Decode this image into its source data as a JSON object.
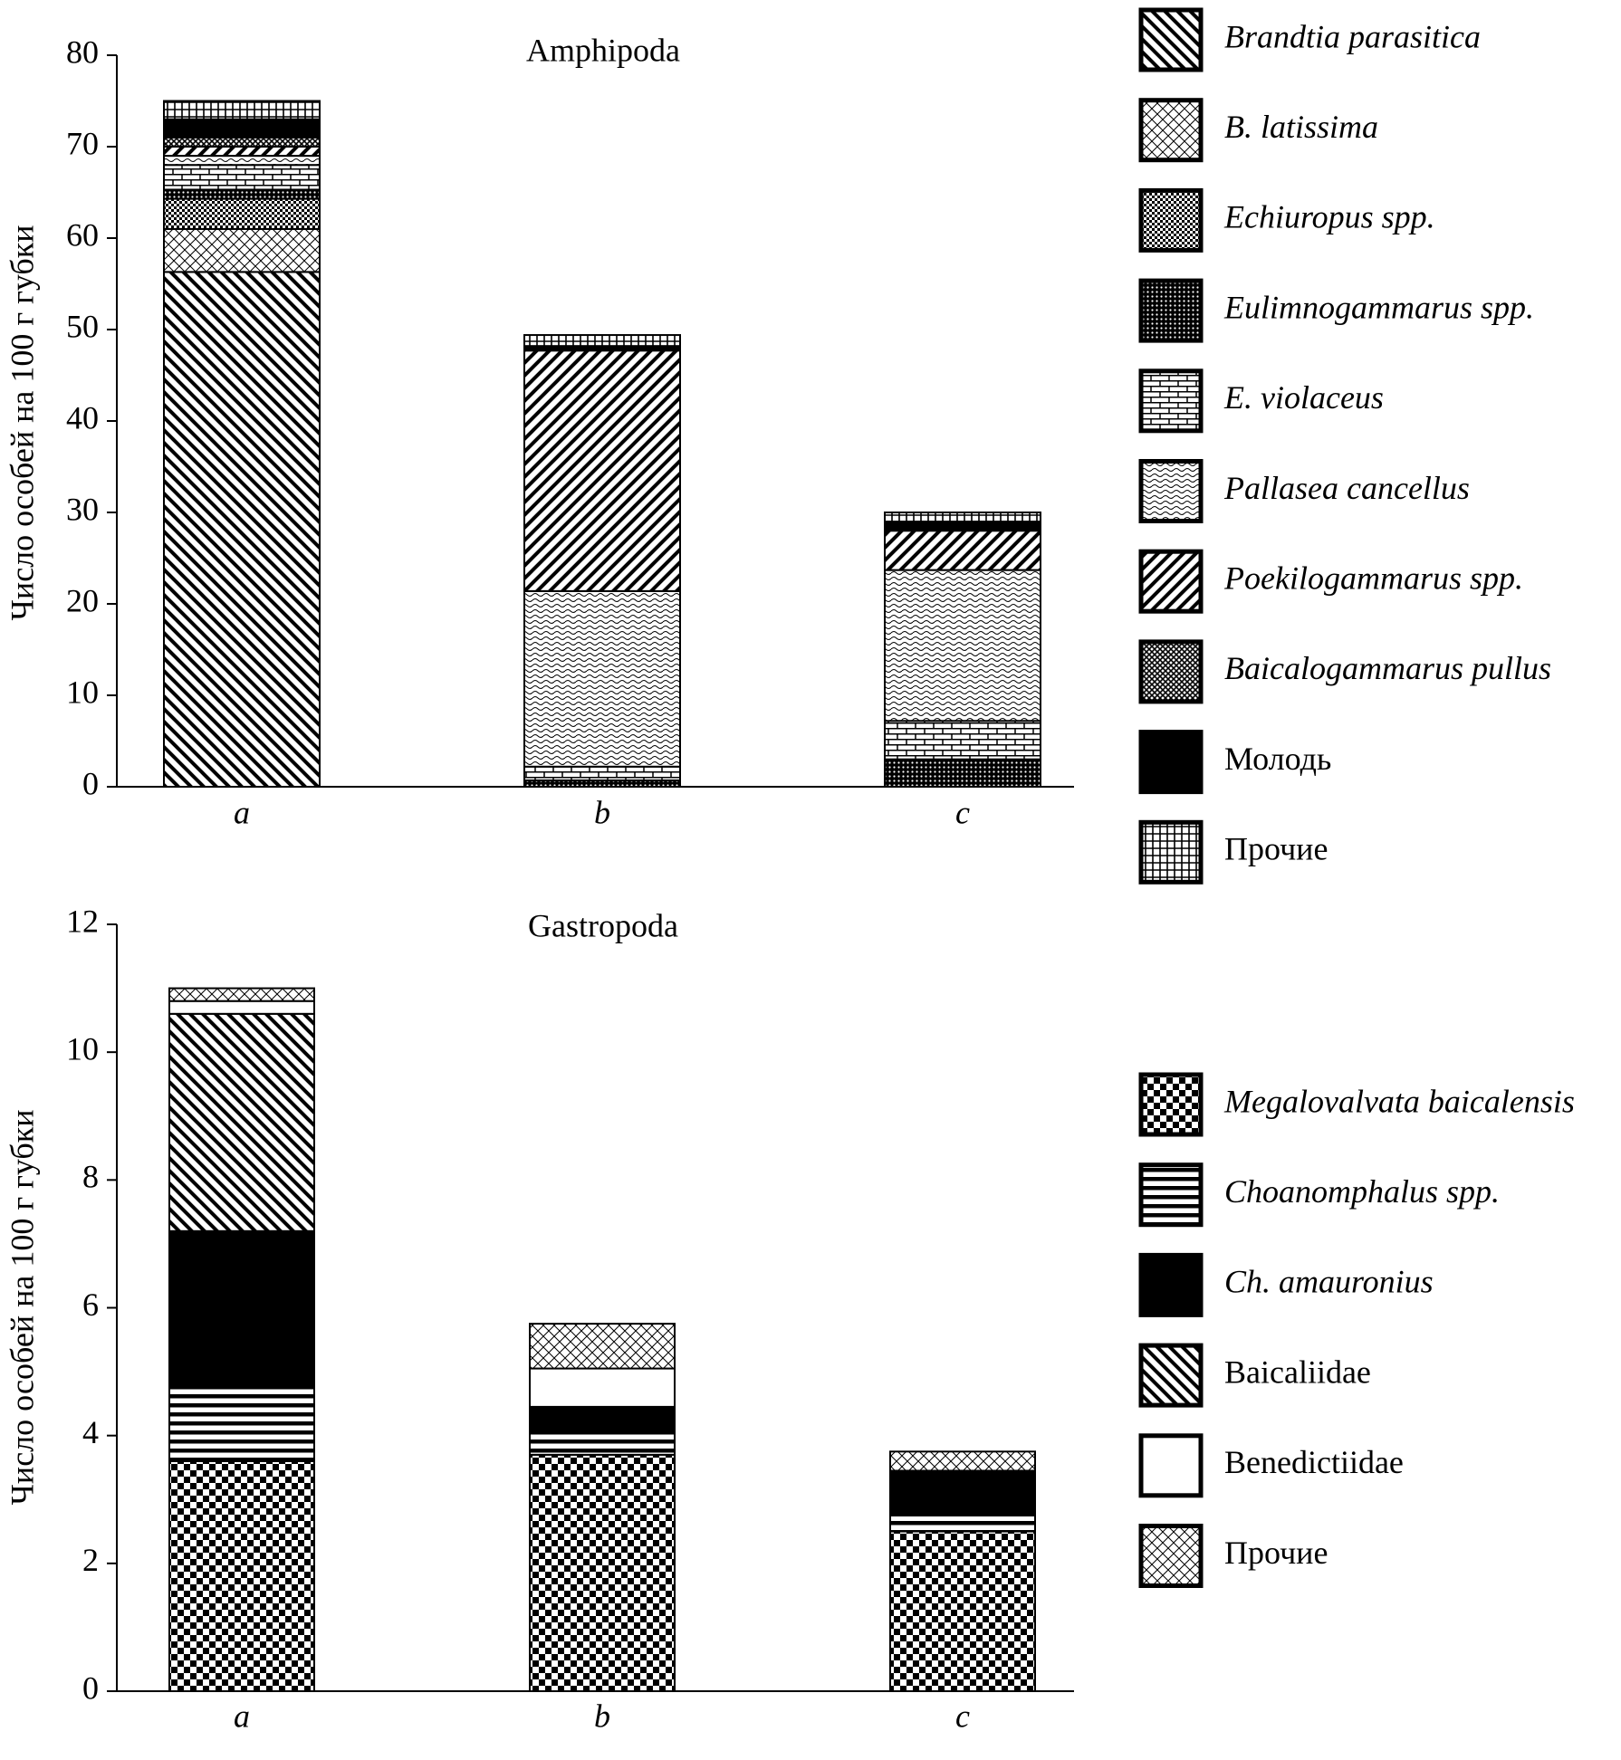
{
  "chart_data": [
    {
      "type": "bar",
      "stacked": true,
      "title": "Amphipoda",
      "y_label": "Число особей на 100 г губки",
      "categories": [
        "a",
        "b",
        "c"
      ],
      "series": [
        {
          "name": "Brandtia parasitica",
          "font_style": "italic",
          "values": [
            56.3,
            0,
            0
          ]
        },
        {
          "name": "B. latissima",
          "font_style": "italic",
          "values": [
            4.7,
            0,
            0
          ]
        },
        {
          "name": "Echiuropus spp.",
          "font_style": "italic",
          "values": [
            3.3,
            0,
            0
          ]
        },
        {
          "name": "Eulimnogammarus spp.",
          "font_style": "italic",
          "values": [
            1,
            0.7,
            3
          ]
        },
        {
          "name": "E. violaceus",
          "font_style": "italic",
          "values": [
            2.7,
            1.5,
            4.2
          ]
        },
        {
          "name": "Pallasea cancellus",
          "font_style": "italic",
          "values": [
            1,
            19.2,
            16.5
          ]
        },
        {
          "name": "Poekilogammarus spp.",
          "font_style": "italic",
          "values": [
            1,
            26.3,
            4.3
          ]
        },
        {
          "name": "Baicalogammarus pullus",
          "font_style": "italic",
          "values": [
            1,
            0,
            0
          ]
        },
        {
          "name": "Молодь",
          "font_style": "normal",
          "values": [
            2,
            0.5,
            1
          ]
        },
        {
          "name": "Прочие",
          "font_style": "normal",
          "values": [
            2,
            1.2,
            1
          ]
        }
      ],
      "ylim": [
        0,
        80
      ],
      "yticks": [
        0,
        10,
        20,
        30,
        40,
        50,
        60,
        70,
        80
      ]
    },
    {
      "type": "bar",
      "stacked": true,
      "title": "Gastropoda",
      "y_label": "Число особей на 100 г губки",
      "categories": [
        "a",
        "b",
        "c"
      ],
      "series": [
        {
          "name": "Megalovalvata baicalensis",
          "font_style": "italic",
          "values": [
            3.6,
            3.7,
            2.5
          ]
        },
        {
          "name": "Choanomphalus spp.",
          "font_style": "italic",
          "values": [
            1.2,
            0.35,
            0.25
          ]
        },
        {
          "name": "Ch. amauronius",
          "font_style": "italic",
          "values": [
            2.4,
            0.4,
            0.7
          ]
        },
        {
          "name": "Baicaliidae",
          "font_style": "normal",
          "values": [
            3.4,
            0,
            0
          ]
        },
        {
          "name": "Benedictiidae",
          "font_style": "normal",
          "values": [
            0.2,
            0.6,
            0
          ]
        },
        {
          "name": "Прочие",
          "font_style": "normal",
          "values": [
            0.2,
            0.7,
            0.3
          ]
        }
      ],
      "ylim": [
        0,
        12
      ],
      "yticks": [
        0,
        2,
        4,
        6,
        8,
        10,
        12
      ]
    }
  ]
}
